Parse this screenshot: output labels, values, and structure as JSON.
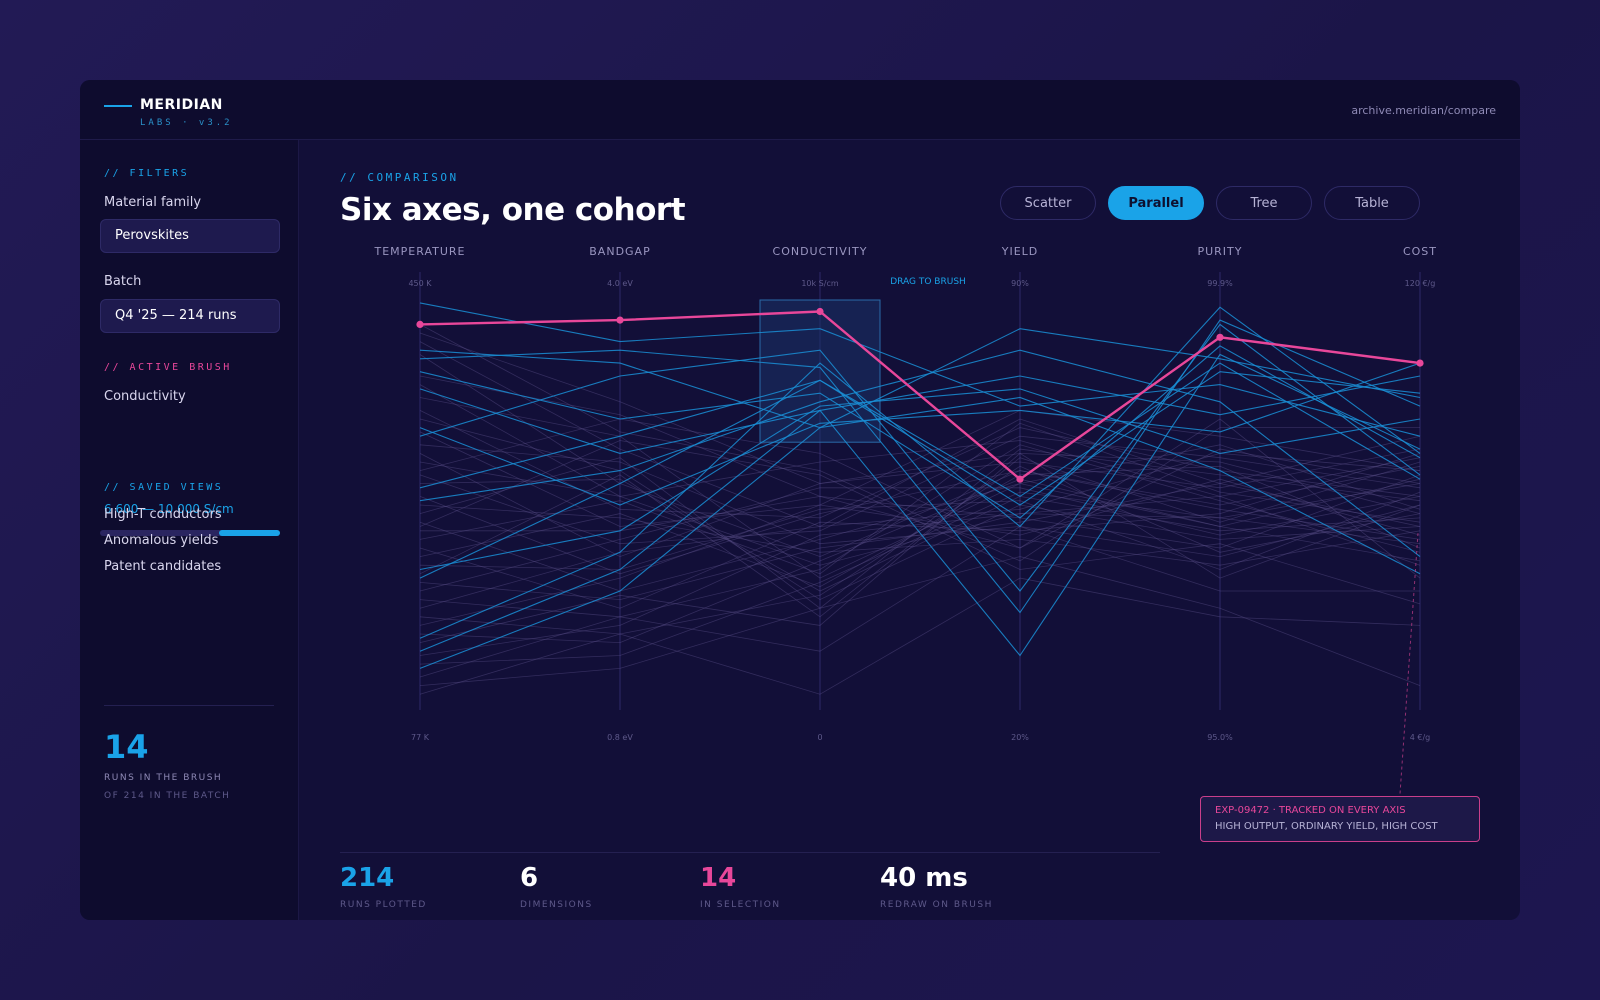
{
  "app": {
    "logo_title": "MERIDIAN",
    "logo_sub": "LABS · v3.2",
    "url": "archive.meridian/compare"
  },
  "sidebar": {
    "filters_label": "// FILTERS",
    "material_label": "Material family",
    "material_value": "Perovskites",
    "batch_label": "Batch",
    "batch_value": "Q4 '25 — 214 runs",
    "active_brush_label": "// ACTIVE BRUSH",
    "brush_field": "Conductivity",
    "brush_range": "6 600 — 10 000 S/cm",
    "brush_fraction": [
      0.66,
      1.0
    ],
    "saved_views_label": "// SAVED VIEWS",
    "saved_views": [
      "High-T conductors",
      "Anomalous yields",
      "Patent candidates"
    ],
    "count": "14",
    "count_sub1": "RUNS IN THE BRUSH",
    "count_sub2": "OF 214 IN THE BATCH"
  },
  "main": {
    "eyebrow": "// COMPARISON",
    "title": "Six axes, one cohort",
    "tabs": [
      {
        "label": "Scatter",
        "active": false
      },
      {
        "label": "Parallel",
        "active": true
      },
      {
        "label": "Tree",
        "active": false
      },
      {
        "label": "Table",
        "active": false
      }
    ],
    "drag_hint": "DRAG TO BRUSH"
  },
  "chart_data": {
    "type": "parallel-coordinates",
    "axes": [
      {
        "name": "TEMPERATURE",
        "max_label": "450 K",
        "min_label": "77 K",
        "min": 77,
        "max": 450
      },
      {
        "name": "BANDGAP",
        "max_label": "4.0 eV",
        "min_label": "0.8 eV",
        "min": 0.8,
        "max": 4.0
      },
      {
        "name": "CONDUCTIVITY",
        "max_label": "10k S/cm",
        "min_label": "0",
        "min": 0,
        "max": 10000
      },
      {
        "name": "YIELD",
        "max_label": "90%",
        "min_label": "20%",
        "min": 20,
        "max": 90
      },
      {
        "name": "PURITY",
        "max_label": "99.9%",
        "min_label": "95.0%",
        "min": 95.0,
        "max": 99.9
      },
      {
        "name": "COST",
        "max_label": "120 €/g",
        "min_label": "4 €/g",
        "min": 4,
        "max": 120
      }
    ],
    "brush": {
      "axis": "CONDUCTIVITY",
      "range": [
        6600,
        10000
      ]
    },
    "tracked_run": {
      "id": "EXP-09472",
      "values": [
        0.92,
        0.93,
        0.95,
        0.56,
        0.89,
        0.83
      ]
    },
    "selected_runs": [
      [
        0.97,
        0.88,
        0.91,
        0.73,
        0.78,
        0.66
      ],
      [
        0.86,
        0.83,
        0.68,
        0.91,
        0.84,
        0.75
      ],
      [
        0.84,
        0.86,
        0.82,
        0.25,
        0.93,
        0.73
      ],
      [
        0.81,
        0.7,
        0.76,
        0.47,
        0.87,
        0.61
      ],
      [
        0.77,
        0.62,
        0.72,
        0.8,
        0.71,
        0.8
      ],
      [
        0.66,
        0.8,
        0.86,
        0.3,
        0.92,
        0.57
      ],
      [
        0.68,
        0.5,
        0.69,
        0.72,
        0.67,
        0.83
      ],
      [
        0.54,
        0.66,
        0.79,
        0.52,
        0.83,
        0.56
      ],
      [
        0.51,
        0.58,
        0.74,
        0.86,
        0.74,
        0.38
      ],
      [
        0.35,
        0.44,
        0.73,
        0.77,
        0.62,
        0.7
      ],
      [
        0.33,
        0.55,
        0.79,
        0.5,
        0.81,
        0.76
      ],
      [
        0.19,
        0.39,
        0.83,
        0.45,
        0.96,
        0.62
      ],
      [
        0.16,
        0.35,
        0.72,
        0.15,
        0.85,
        0.63
      ],
      [
        0.12,
        0.3,
        0.68,
        0.75,
        0.58,
        0.34
      ]
    ],
    "other_runs": [
      [
        0.9,
        0.74,
        0.55,
        0.62,
        0.6,
        0.48
      ],
      [
        0.88,
        0.63,
        0.45,
        0.7,
        0.55,
        0.66
      ],
      [
        0.85,
        0.55,
        0.38,
        0.58,
        0.49,
        0.42
      ],
      [
        0.8,
        0.71,
        0.52,
        0.4,
        0.63,
        0.55
      ],
      [
        0.78,
        0.52,
        0.6,
        0.65,
        0.52,
        0.61
      ],
      [
        0.75,
        0.66,
        0.33,
        0.55,
        0.45,
        0.37
      ],
      [
        0.72,
        0.49,
        0.47,
        0.68,
        0.58,
        0.52
      ],
      [
        0.7,
        0.58,
        0.28,
        0.5,
        0.42,
        0.45
      ],
      [
        0.67,
        0.45,
        0.5,
        0.72,
        0.66,
        0.58
      ],
      [
        0.64,
        0.6,
        0.41,
        0.45,
        0.38,
        0.5
      ],
      [
        0.62,
        0.38,
        0.55,
        0.6,
        0.54,
        0.63
      ],
      [
        0.6,
        0.52,
        0.36,
        0.48,
        0.47,
        0.41
      ],
      [
        0.57,
        0.41,
        0.44,
        0.66,
        0.61,
        0.54
      ],
      [
        0.55,
        0.56,
        0.3,
        0.52,
        0.44,
        0.47
      ],
      [
        0.52,
        0.34,
        0.48,
        0.58,
        0.5,
        0.59
      ],
      [
        0.5,
        0.47,
        0.39,
        0.42,
        0.36,
        0.44
      ],
      [
        0.48,
        0.61,
        0.26,
        0.63,
        0.57,
        0.51
      ],
      [
        0.46,
        0.3,
        0.42,
        0.55,
        0.64,
        0.49
      ],
      [
        0.44,
        0.44,
        0.52,
        0.47,
        0.4,
        0.57
      ],
      [
        0.42,
        0.51,
        0.34,
        0.69,
        0.53,
        0.46
      ],
      [
        0.4,
        0.26,
        0.46,
        0.44,
        0.48,
        0.62
      ],
      [
        0.38,
        0.48,
        0.31,
        0.57,
        0.59,
        0.4
      ],
      [
        0.36,
        0.35,
        0.49,
        0.51,
        0.35,
        0.53
      ],
      [
        0.34,
        0.57,
        0.24,
        0.61,
        0.46,
        0.6
      ],
      [
        0.32,
        0.28,
        0.4,
        0.46,
        0.55,
        0.45
      ],
      [
        0.3,
        0.42,
        0.54,
        0.54,
        0.43,
        0.52
      ],
      [
        0.28,
        0.24,
        0.35,
        0.64,
        0.51,
        0.39
      ],
      [
        0.26,
        0.39,
        0.45,
        0.49,
        0.62,
        0.58
      ],
      [
        0.24,
        0.2,
        0.29,
        0.59,
        0.39,
        0.48
      ],
      [
        0.22,
        0.33,
        0.5,
        0.43,
        0.56,
        0.43
      ],
      [
        0.2,
        0.18,
        0.37,
        0.56,
        0.45,
        0.56
      ],
      [
        0.18,
        0.29,
        0.22,
        0.62,
        0.33,
        0.5
      ],
      [
        0.15,
        0.22,
        0.43,
        0.48,
        0.52,
        0.36
      ],
      [
        0.13,
        0.15,
        0.32,
        0.53,
        0.47,
        0.55
      ],
      [
        0.1,
        0.24,
        0.16,
        0.45,
        0.3,
        0.3
      ],
      [
        0.08,
        0.12,
        0.26,
        0.38,
        0.26,
        0.08
      ],
      [
        0.06,
        0.2,
        0.06,
        0.33,
        0.24,
        0.22
      ],
      [
        0.92,
        0.67,
        0.58,
        0.37,
        0.68,
        0.68
      ],
      [
        0.58,
        0.7,
        0.62,
        0.4,
        0.7,
        0.33
      ],
      [
        0.45,
        0.65,
        0.57,
        0.35,
        0.41,
        0.27
      ]
    ]
  },
  "callout": {
    "line1": "EXP-09472 · TRACKED ON EVERY AXIS",
    "line2": "HIGH OUTPUT, ORDINARY YIELD, HIGH COST"
  },
  "stats": [
    {
      "value": "214",
      "label": "RUNS PLOTTED",
      "color": "#1aa3e8"
    },
    {
      "value": "6",
      "label": "DIMENSIONS",
      "color": "#ffffff"
    },
    {
      "value": "14",
      "label": "IN SELECTION",
      "color": "#e8479a"
    },
    {
      "value": "40 ms",
      "label": "REDRAW ON BRUSH",
      "color": "#ffffff"
    }
  ],
  "colors": {
    "accent": "#1aa3e8",
    "highlight": "#e8479a",
    "muted_line": "#5a4f8a"
  }
}
